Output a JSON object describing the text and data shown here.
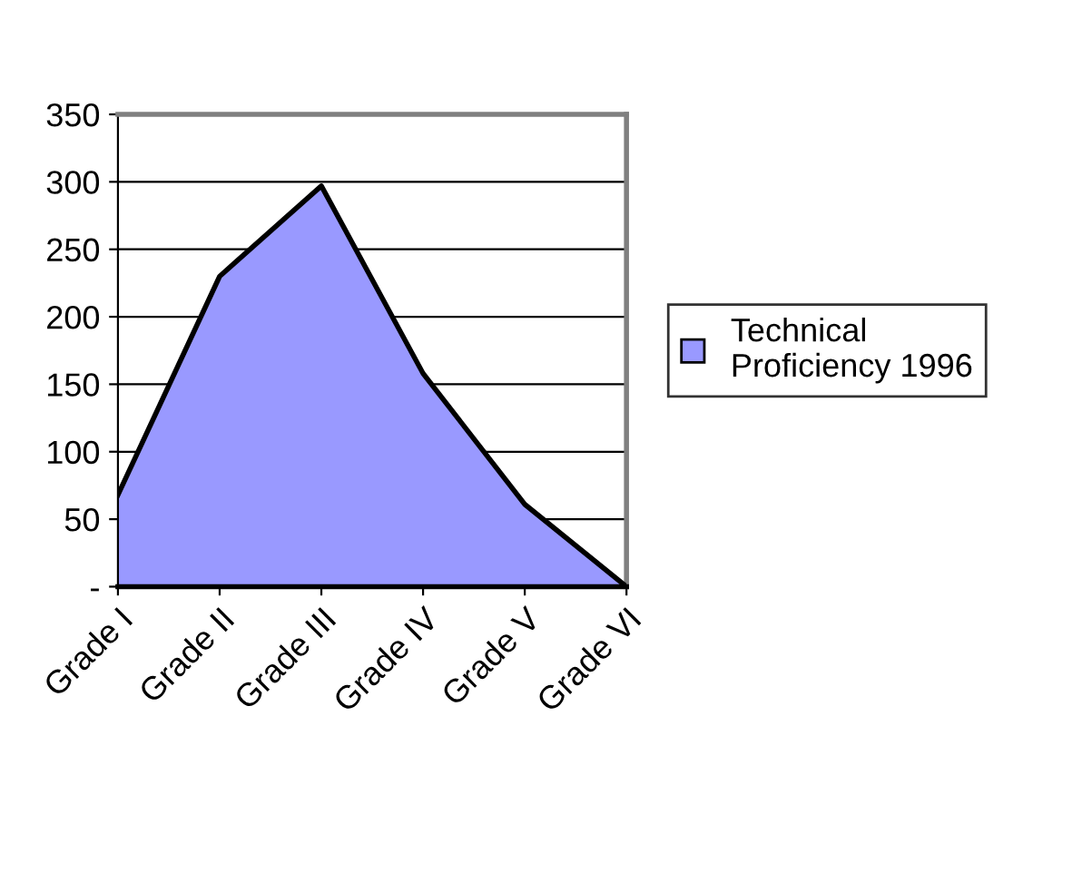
{
  "chart_data": {
    "type": "area",
    "categories": [
      "Grade I",
      "Grade II",
      "Grade III",
      "Grade IV",
      "Grade V",
      "Grade VI"
    ],
    "series": [
      {
        "name": "Technical Proficiency 1996",
        "color": "#9999ff",
        "values": [
          68,
          230,
          297,
          158,
          61,
          0
        ]
      }
    ],
    "ylim": [
      0,
      350
    ],
    "yticks": [
      {
        "value": 0,
        "label": "-"
      },
      50,
      100,
      150,
      200,
      250,
      300,
      350
    ],
    "grid": "y",
    "legend": "right"
  }
}
